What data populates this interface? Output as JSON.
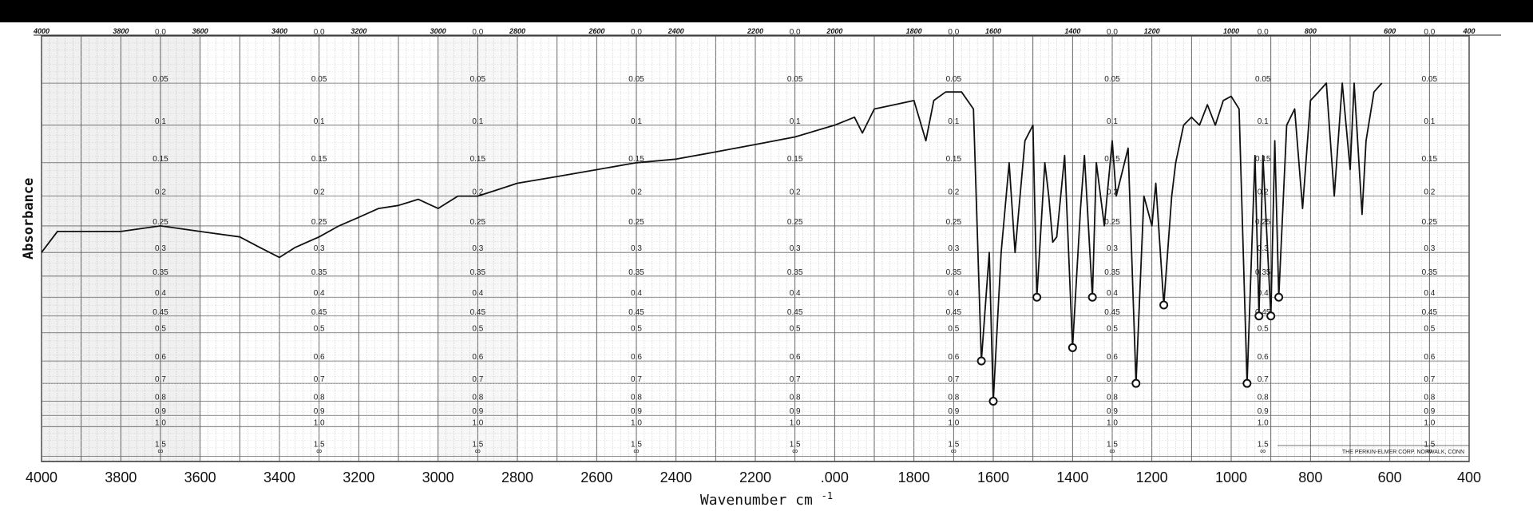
{
  "chart_data": {
    "type": "line",
    "title": "",
    "xlabel": "Wavenumber cm",
    "xlabel_superscript": "-1",
    "ylabel": "Absorbance",
    "x_reversed": true,
    "xlim": [
      4000,
      400
    ],
    "x_ticks_bottom": [
      "4000",
      "3800",
      "3600",
      "3400",
      "3200",
      "3000",
      "2800",
      "2600",
      "2400",
      "2200",
      ".000",
      "1800",
      "1600",
      "1400",
      "1200",
      "1000",
      "800",
      "600",
      "400"
    ],
    "x_ticks_top": [
      "4000",
      "3800",
      "3600",
      "3400",
      "3200",
      "3000",
      "2800",
      "2600",
      "2400",
      "2200",
      "2000",
      "1800",
      "1600",
      "1400",
      "1200",
      "1000",
      "800",
      "600",
      "400"
    ],
    "absorbance_scale_labels": [
      "0.0",
      "0.05",
      "0.1",
      "0.15",
      "0.2",
      "0.25",
      "0.3",
      "0.35",
      "0.4",
      "0.45",
      "0.5",
      "0.6",
      "0.7",
      "0.8",
      "0.9",
      "1.0",
      "1.5",
      "∞"
    ],
    "absorbance_scale_values": [
      0,
      0.05,
      0.1,
      0.15,
      0.2,
      0.25,
      0.3,
      0.35,
      0.4,
      0.45,
      0.5,
      0.6,
      0.7,
      0.8,
      0.9,
      1.0,
      1.5,
      null
    ],
    "chart_paper_credit": "THE PERKIN-ELMER CORP. NORWALK, CONN",
    "grid": true,
    "series": [
      {
        "points": [
          [
            4000,
            0.3
          ],
          [
            3960,
            0.26
          ],
          [
            3900,
            0.26
          ],
          [
            3800,
            0.26
          ],
          [
            3700,
            0.25
          ],
          [
            3600,
            0.26
          ],
          [
            3500,
            0.27
          ],
          [
            3450,
            0.29
          ],
          [
            3400,
            0.31
          ],
          [
            3360,
            0.29
          ],
          [
            3300,
            0.27
          ],
          [
            3250,
            0.25
          ],
          [
            3200,
            0.235
          ],
          [
            3150,
            0.22
          ],
          [
            3100,
            0.215
          ],
          [
            3050,
            0.205
          ],
          [
            3000,
            0.22
          ],
          [
            2950,
            0.2
          ],
          [
            2900,
            0.2
          ],
          [
            2850,
            0.19
          ],
          [
            2800,
            0.18
          ],
          [
            2700,
            0.17
          ],
          [
            2600,
            0.16
          ],
          [
            2500,
            0.15
          ],
          [
            2400,
            0.145
          ],
          [
            2300,
            0.135
          ],
          [
            2200,
            0.125
          ],
          [
            2100,
            0.115
          ],
          [
            2000,
            0.1
          ],
          [
            1950,
            0.09
          ],
          [
            1930,
            0.11
          ],
          [
            1900,
            0.08
          ],
          [
            1850,
            0.075
          ],
          [
            1800,
            0.07
          ],
          [
            1770,
            0.12
          ],
          [
            1750,
            0.07
          ],
          [
            1720,
            0.06
          ],
          [
            1680,
            0.06
          ],
          [
            1650,
            0.08
          ],
          [
            1630,
            0.6
          ],
          [
            1610,
            0.3
          ],
          [
            1600,
            0.8
          ],
          [
            1580,
            0.3
          ],
          [
            1560,
            0.15
          ],
          [
            1545,
            0.3
          ],
          [
            1520,
            0.12
          ],
          [
            1500,
            0.1
          ],
          [
            1490,
            0.4
          ],
          [
            1470,
            0.15
          ],
          [
            1460,
            0.2
          ],
          [
            1450,
            0.28
          ],
          [
            1440,
            0.27
          ],
          [
            1420,
            0.14
          ],
          [
            1400,
            0.55
          ],
          [
            1380,
            0.22
          ],
          [
            1370,
            0.14
          ],
          [
            1350,
            0.4
          ],
          [
            1340,
            0.15
          ],
          [
            1320,
            0.25
          ],
          [
            1300,
            0.12
          ],
          [
            1290,
            0.2
          ],
          [
            1260,
            0.13
          ],
          [
            1240,
            0.7
          ],
          [
            1220,
            0.2
          ],
          [
            1200,
            0.25
          ],
          [
            1190,
            0.18
          ],
          [
            1170,
            0.42
          ],
          [
            1150,
            0.2
          ],
          [
            1140,
            0.15
          ],
          [
            1120,
            0.1
          ],
          [
            1100,
            0.09
          ],
          [
            1080,
            0.1
          ],
          [
            1060,
            0.075
          ],
          [
            1040,
            0.1
          ],
          [
            1020,
            0.07
          ],
          [
            1000,
            0.065
          ],
          [
            980,
            0.08
          ],
          [
            960,
            0.7
          ],
          [
            940,
            0.14
          ],
          [
            930,
            0.45
          ],
          [
            920,
            0.14
          ],
          [
            900,
            0.45
          ],
          [
            890,
            0.12
          ],
          [
            880,
            0.4
          ],
          [
            860,
            0.1
          ],
          [
            840,
            0.08
          ],
          [
            820,
            0.22
          ],
          [
            800,
            0.07
          ],
          [
            780,
            0.06
          ],
          [
            760,
            0.05
          ],
          [
            740,
            0.2
          ],
          [
            720,
            0.05
          ],
          [
            700,
            0.16
          ],
          [
            690,
            0.05
          ],
          [
            670,
            0.23
          ],
          [
            660,
            0.12
          ],
          [
            640,
            0.06
          ],
          [
            620,
            0.05
          ]
        ]
      }
    ]
  }
}
